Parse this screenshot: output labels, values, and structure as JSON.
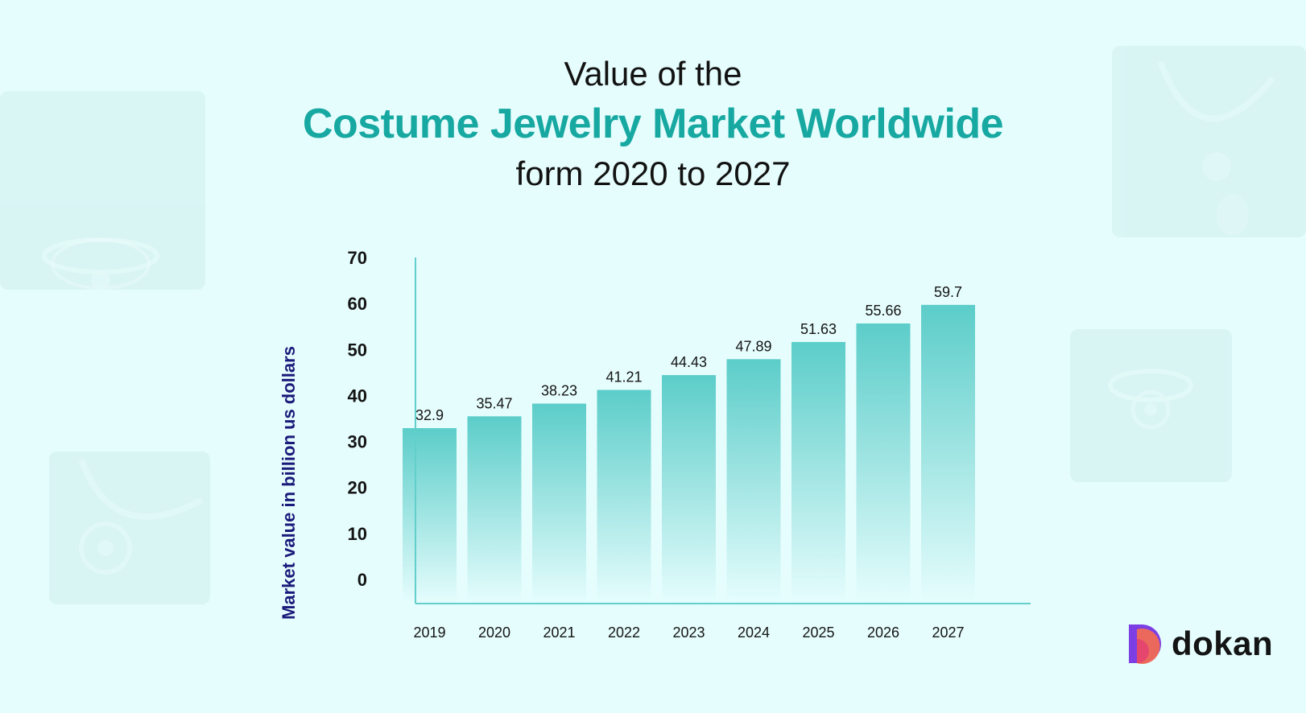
{
  "header": {
    "line1": "Value of the",
    "line2": "Costume Jewelry Market Worldwide",
    "line3": "form 2020 to 2027"
  },
  "brand": {
    "name": "dokan"
  },
  "colors": {
    "background": "#e6fdfd",
    "accent": "#16a8a1",
    "bar_top": "#5ccdc9",
    "axis": "#62cfcb",
    "ylabel": "#1a1a7a"
  },
  "chart_data": {
    "type": "bar",
    "categories": [
      "2019",
      "2020",
      "2021",
      "2022",
      "2023",
      "2024",
      "2025",
      "2026",
      "2027"
    ],
    "values": [
      32.9,
      35.47,
      38.23,
      41.21,
      44.43,
      47.89,
      51.63,
      55.66,
      59.7
    ],
    "value_labels": [
      "32.9",
      "35.47",
      "38.23",
      "41.21",
      "44.43",
      "47.89",
      "51.63",
      "55.66",
      "59.7"
    ],
    "yticks": [
      0,
      10,
      20,
      30,
      40,
      50,
      60,
      70
    ],
    "ylim": [
      0,
      70
    ],
    "xlabel": "",
    "ylabel": "Market value in billion us dollars",
    "grid": false,
    "legend": "none"
  }
}
